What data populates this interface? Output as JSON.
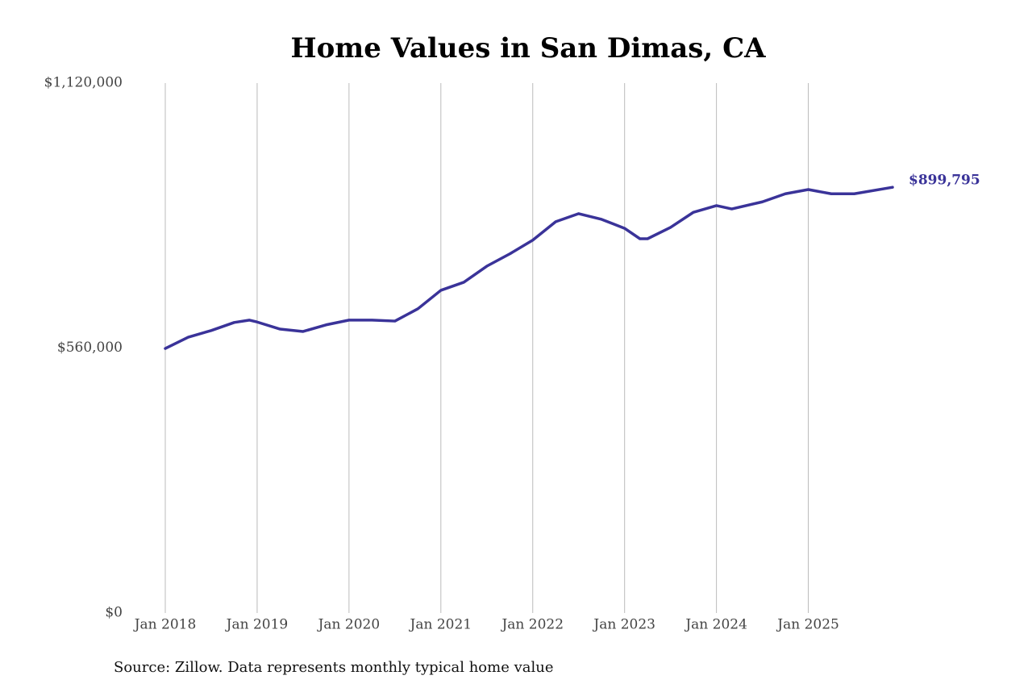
{
  "chart_data": {
    "type": "line",
    "title": "Home Values in San Dimas, CA",
    "source": "Source: Zillow. Data represents monthly typical home value",
    "x": [
      "2018-01",
      "2018-04",
      "2018-07",
      "2018-10",
      "2018-12",
      "2019-01",
      "2019-04",
      "2019-07",
      "2019-10",
      "2020-01",
      "2020-04",
      "2020-07",
      "2020-10",
      "2021-01",
      "2021-04",
      "2021-07",
      "2021-10",
      "2022-01",
      "2022-04",
      "2022-07",
      "2022-10",
      "2023-01",
      "2023-03",
      "2023-04",
      "2023-07",
      "2023-10",
      "2024-01",
      "2024-03",
      "2024-07",
      "2024-10",
      "2025-01",
      "2025-04",
      "2025-07",
      "2025-12"
    ],
    "series": [
      {
        "name": "San Dimas, CA",
        "color": "#3a3399",
        "values": [
          559000,
          583000,
          597000,
          614000,
          619000,
          615000,
          600000,
          595000,
          609000,
          619000,
          619000,
          617000,
          643000,
          682000,
          699000,
          733000,
          759000,
          788000,
          827000,
          844000,
          832000,
          813000,
          791000,
          791000,
          815000,
          847000,
          861000,
          854000,
          869000,
          886000,
          895000,
          886000,
          886000,
          899795
        ],
        "value_labels": [
          null,
          null,
          null,
          null,
          null,
          null,
          null,
          null,
          null,
          null,
          null,
          null,
          null,
          null,
          null,
          null,
          null,
          null,
          null,
          null,
          null,
          null,
          null,
          null,
          null,
          null,
          null,
          null,
          null,
          null,
          null,
          null,
          null,
          "$899,795"
        ]
      }
    ],
    "xlim": [
      "2018-01",
      "2025-12"
    ],
    "xticks": [
      {
        "value": "2018-01",
        "label": "Jan 2018"
      },
      {
        "value": "2019-01",
        "label": "Jan 2019"
      },
      {
        "value": "2020-01",
        "label": "Jan 2020"
      },
      {
        "value": "2021-01",
        "label": "Jan 2021"
      },
      {
        "value": "2022-01",
        "label": "Jan 2022"
      },
      {
        "value": "2023-01",
        "label": "Jan 2023"
      },
      {
        "value": "2024-01",
        "label": "Jan 2024"
      },
      {
        "value": "2025-01",
        "label": "Jan 2025"
      }
    ],
    "ylim": [
      0,
      1120000
    ],
    "yticks": [
      {
        "value": 0,
        "label": "$0"
      },
      {
        "value": 560000,
        "label": "$560,000"
      },
      {
        "value": 1120000,
        "label": "$1,120,000"
      }
    ],
    "grid": "x"
  }
}
